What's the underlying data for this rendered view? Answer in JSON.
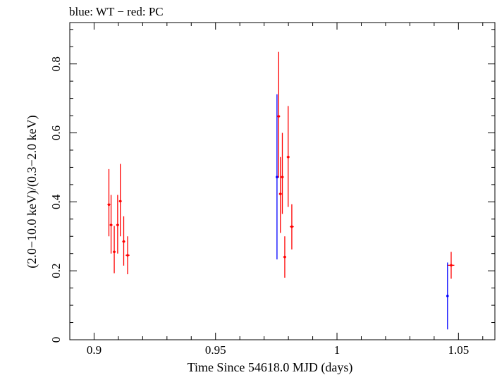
{
  "chart_data": {
    "type": "scatter",
    "title": "blue: WT − red: PC",
    "xlabel": "Time Since 54618.0 MJD (days)",
    "ylabel": "(2.0−10.0 keV)/(0.3−2.0 keV)",
    "xlim": [
      0.89,
      1.065
    ],
    "ylim": [
      0,
      0.92
    ],
    "x_ticks": [
      0.9,
      0.95,
      1,
      1.05
    ],
    "x_tick_labels": [
      "0.9",
      "0.95",
      "1",
      "1.05"
    ],
    "y_ticks": [
      0,
      0.2,
      0.4,
      0.6,
      0.8
    ],
    "y_tick_labels": [
      "0",
      "0.2",
      "0.4",
      "0.6",
      "0.8"
    ],
    "series": [
      {
        "name": "WT",
        "color": "#0000ff",
        "points": [
          {
            "x": 0.9753,
            "y": 0.472,
            "xerr": 0.0003,
            "ylo": 0.233,
            "yhi": 0.712
          },
          {
            "x": 1.0455,
            "y": 0.127,
            "xerr": 0.0003,
            "ylo": 0.03,
            "yhi": 0.224
          }
        ]
      },
      {
        "name": "PC",
        "color": "#ff0000",
        "points": [
          {
            "x": 0.9061,
            "y": 0.392,
            "xerr": 0.0006,
            "ylo": 0.3,
            "yhi": 0.495
          },
          {
            "x": 0.907,
            "y": 0.333,
            "xerr": 0.0006,
            "ylo": 0.25,
            "yhi": 0.42
          },
          {
            "x": 0.9083,
            "y": 0.255,
            "xerr": 0.0006,
            "ylo": 0.193,
            "yhi": 0.33
          },
          {
            "x": 0.9097,
            "y": 0.333,
            "xerr": 0.0006,
            "ylo": 0.25,
            "yhi": 0.42
          },
          {
            "x": 0.9108,
            "y": 0.402,
            "xerr": 0.0006,
            "ylo": 0.3,
            "yhi": 0.51
          },
          {
            "x": 0.9122,
            "y": 0.285,
            "xerr": 0.0006,
            "ylo": 0.215,
            "yhi": 0.358
          },
          {
            "x": 0.9138,
            "y": 0.245,
            "xerr": 0.0008,
            "ylo": 0.19,
            "yhi": 0.3
          },
          {
            "x": 0.976,
            "y": 0.648,
            "xerr": 0.0006,
            "ylo": 0.47,
            "yhi": 0.835
          },
          {
            "x": 0.9767,
            "y": 0.423,
            "xerr": 0.0006,
            "ylo": 0.31,
            "yhi": 0.53
          },
          {
            "x": 0.9775,
            "y": 0.472,
            "xerr": 0.0006,
            "ylo": 0.365,
            "yhi": 0.6
          },
          {
            "x": 0.9785,
            "y": 0.24,
            "xerr": 0.0006,
            "ylo": 0.18,
            "yhi": 0.3
          },
          {
            "x": 0.9799,
            "y": 0.53,
            "xerr": 0.0006,
            "ylo": 0.385,
            "yhi": 0.678
          },
          {
            "x": 0.9814,
            "y": 0.328,
            "xerr": 0.0008,
            "ylo": 0.262,
            "yhi": 0.393
          },
          {
            "x": 1.047,
            "y": 0.216,
            "xerr": 0.0013,
            "ylo": 0.177,
            "yhi": 0.255
          }
        ]
      }
    ]
  }
}
